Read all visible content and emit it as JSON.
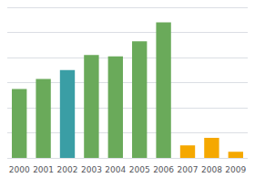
{
  "chart_data": {
    "type": "bar",
    "categories": [
      "2000",
      "2001",
      "2002",
      "2003",
      "2004",
      "2005",
      "2006",
      "2007",
      "2008",
      "2009"
    ],
    "values": [
      55,
      63,
      70,
      82,
      81,
      93,
      108,
      10,
      16,
      5
    ],
    "colors": [
      "#6aaa5a",
      "#6aaa5a",
      "#3a9ea5",
      "#6aaa5a",
      "#6aaa5a",
      "#6aaa5a",
      "#6aaa5a",
      "#f5a800",
      "#f5a800",
      "#f5a800"
    ],
    "ylim": [
      0,
      120
    ],
    "yticks": [
      0,
      20,
      40,
      60,
      80,
      100,
      120
    ],
    "grid": true,
    "tick_labels": "x"
  }
}
